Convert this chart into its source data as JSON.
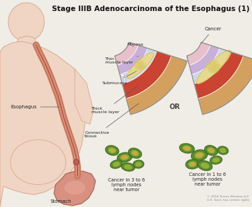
{
  "title": "Stage IIIB Adenocarcinoma of the Esophagus (1)",
  "title_fontsize": 7.5,
  "title_fontweight": "bold",
  "bg_color": "#f0ece6",
  "body_skin_color": "#f0d5c4",
  "body_outline_color": "#d8a890",
  "esophagus_color": "#c87860",
  "esophagus_inner": "#b86050",
  "stomach_color": "#d08070",
  "esophagus_label": "Esophagus",
  "stomach_label": "Stomach",
  "cancer_label_top": "Cancer",
  "or_label": "OR",
  "left_bottom_label": "Cancer in 3 to 6\nlymph nodes\nnear tumor",
  "right_bottom_label": "Cancer in 1 to 6\nlymph nodes\nnear tumor",
  "copyright": "© 2018 Terese Winslow LLC\nU.S. Govt. has certain rights",
  "mucosa_color": "#e8c0cc",
  "thin_muscle_color": "#c8b0d8",
  "submucosa_color": "#d0d8e8",
  "thick_muscle_r1": "#c84030",
  "thick_muscle_r2": "#e06040",
  "connective_color": "#d4a060",
  "cancer_color": "#e8d888",
  "cancer_edge": "#c8b848",
  "lymph_outer": "#5a8a30",
  "lymph_inner": "#b8c840",
  "lymph_cancer": "#d4a840",
  "label_color": "#222222",
  "arrow_color": "#555555"
}
